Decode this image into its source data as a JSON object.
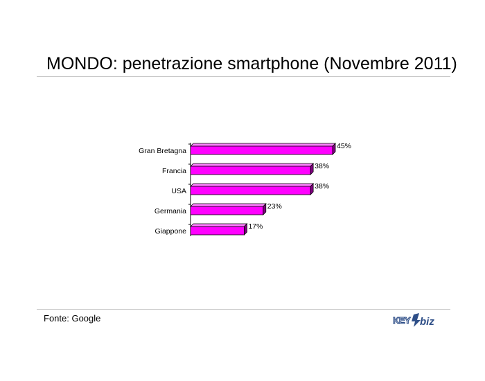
{
  "title": "MONDO: penetrazione smartphone (Novembre 2011)",
  "source": "Fonte: Google",
  "logo": {
    "text": "KEY4biz"
  },
  "colors": {
    "bar_face": "#ff00ff",
    "bar_top": "#ff80ff",
    "bar_side": "#7f007f",
    "bar_outline": "#000000"
  },
  "chart_data": {
    "type": "bar",
    "orientation": "horizontal",
    "categories": [
      "Gran Bretagna",
      "Francia",
      "USA",
      "Germania",
      "Giappone"
    ],
    "values": [
      45,
      38,
      38,
      23,
      17
    ],
    "value_labels": [
      "45%",
      "38%",
      "38%",
      "23%",
      "17%"
    ],
    "xlim": [
      0,
      45
    ],
    "grid": false,
    "legend": false
  }
}
